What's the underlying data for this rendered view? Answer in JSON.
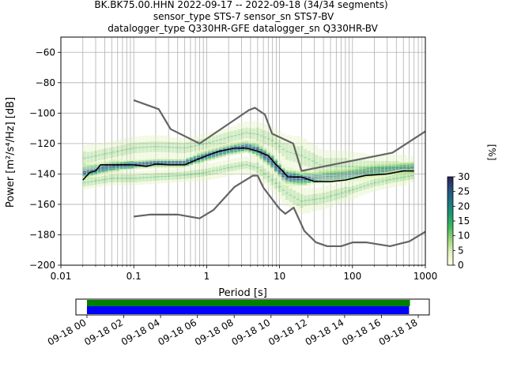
{
  "title_lines": [
    "BK.BK75.00.HHN   2022-09-17 -- 2022-09-18  (34/34 segments)",
    "sensor_type STS-7 sensor_sn STS7-BV",
    "datalogger_type Q330HR-GFE datalogger_sn Q330HR-BV"
  ],
  "chart_data": [
    {
      "type": "heatmap",
      "subtype": "probabilistic-power-spectral-density",
      "xlabel": "Period [s]",
      "ylabel": "Power [m²/s⁴/Hz] [dB]",
      "x_scale": "log",
      "xlim": [
        0.01,
        1000
      ],
      "ylim": [
        -200,
        -50
      ],
      "x_ticks": [
        {
          "value": 0.01,
          "label": "0.01"
        },
        {
          "value": 0.1,
          "label": "0.1"
        },
        {
          "value": 1,
          "label": "1"
        },
        {
          "value": 10,
          "label": "10"
        },
        {
          "value": 100,
          "label": "100"
        },
        {
          "value": 1000,
          "label": "1000"
        }
      ],
      "y_ticks": [
        -200,
        -180,
        -160,
        -140,
        -120,
        -100,
        -80,
        -60
      ],
      "grid": true,
      "colorbar": {
        "label": "[%]",
        "min": 0,
        "max": 30,
        "ticks": [
          0,
          5,
          10,
          15,
          20,
          25,
          30
        ],
        "colors": [
          "#ffffe5",
          "#e2f3bf",
          "#9fd57a",
          "#3ebc5e",
          "#1c9a6e",
          "#1d7585",
          "#28507e",
          "#2a2355"
        ]
      },
      "series": [
        {
          "role": "noise-model-high",
          "color": "#646464",
          "points": [
            [
              0.1,
              -91.5
            ],
            [
              0.22,
              -97.4
            ],
            [
              0.32,
              -110.5
            ],
            [
              0.8,
              -120
            ],
            [
              3.8,
              -98
            ],
            [
              4.6,
              -96.5
            ],
            [
              6.3,
              -101
            ],
            [
              7.9,
              -113.5
            ],
            [
              15.4,
              -120
            ],
            [
              20,
              -138
            ],
            [
              354.8,
              -126
            ],
            [
              1000,
              -112
            ]
          ]
        },
        {
          "role": "noise-model-low",
          "color": "#646464",
          "points": [
            [
              0.1,
              -168
            ],
            [
              0.17,
              -166.7
            ],
            [
              0.4,
              -166.7
            ],
            [
              0.8,
              -169.2
            ],
            [
              1.24,
              -163.7
            ],
            [
              2.4,
              -148.6
            ],
            [
              4.3,
              -141.1
            ],
            [
              5,
              -141.1
            ],
            [
              6,
              -149
            ],
            [
              10,
              -163
            ],
            [
              12,
              -166.2
            ],
            [
              15.6,
              -162.1
            ],
            [
              21.9,
              -177.5
            ],
            [
              31.6,
              -185
            ],
            [
              45,
              -187.5
            ],
            [
              70,
              -187.5
            ],
            [
              101,
              -185
            ],
            [
              154,
              -185
            ],
            [
              328,
              -187.5
            ],
            [
              600,
              -184.4
            ],
            [
              1000,
              -178
            ]
          ]
        },
        {
          "role": "mode",
          "color": "#000000",
          "points": [
            [
              0.02,
              -144
            ],
            [
              0.025,
              -139
            ],
            [
              0.03,
              -138
            ],
            [
              0.035,
              -134
            ],
            [
              0.05,
              -134
            ],
            [
              0.1,
              -134
            ],
            [
              0.15,
              -135
            ],
            [
              0.2,
              -133.5
            ],
            [
              0.3,
              -134
            ],
            [
              0.5,
              -134
            ],
            [
              0.7,
              -131
            ],
            [
              1,
              -128
            ],
            [
              1.5,
              -125
            ],
            [
              2.5,
              -123
            ],
            [
              3.5,
              -123
            ],
            [
              5,
              -125
            ],
            [
              7,
              -128
            ],
            [
              9,
              -134
            ],
            [
              11,
              -138
            ],
            [
              13,
              -142
            ],
            [
              20,
              -142
            ],
            [
              30,
              -145
            ],
            [
              50,
              -145
            ],
            [
              80,
              -144
            ],
            [
              150,
              -141
            ],
            [
              300,
              -140
            ],
            [
              500,
              -138
            ],
            [
              700,
              -138
            ]
          ]
        }
      ],
      "density_bands": [
        {
          "x": [
            0.02,
            0.05,
            0.1,
            0.2,
            0.5,
            1,
            2,
            3.5,
            5,
            8,
            12,
            20,
            40,
            80,
            200,
            400,
            700
          ],
          "y": [
            -139,
            -135,
            -134,
            -133,
            -133,
            -128,
            -124,
            -122,
            -124,
            -132,
            -142,
            -143,
            -142,
            -141,
            -138,
            -137,
            -136
          ],
          "spread": [
            5,
            4,
            3,
            3,
            3,
            4,
            4,
            4,
            5,
            6,
            6,
            5,
            4,
            4,
            4,
            4,
            4
          ],
          "opacity": 0.85
        },
        {
          "x": [
            0.02,
            0.05,
            0.1,
            0.2,
            0.5,
            1,
            2,
            3.5,
            5,
            8,
            12,
            20,
            40,
            80,
            200,
            400,
            700
          ],
          "y": [
            -130,
            -126,
            -123,
            -122,
            -123,
            -120,
            -116,
            -113,
            -114,
            -118,
            -125,
            -128,
            -135,
            -135,
            -136,
            -136,
            -136
          ],
          "spread": [
            8,
            7,
            7,
            7,
            6,
            6,
            6,
            7,
            8,
            9,
            10,
            12,
            10,
            10,
            8,
            8,
            7
          ],
          "opacity": 0.5
        },
        {
          "x": [
            0.02,
            0.05,
            0.1,
            0.2,
            0.5,
            1,
            2,
            3.5,
            5,
            8,
            12,
            20,
            40,
            80,
            200,
            400,
            700
          ],
          "y": [
            -146,
            -143,
            -143,
            -142,
            -141,
            -139,
            -136,
            -134,
            -136,
            -144,
            -152,
            -158,
            -156,
            -152,
            -146,
            -143,
            -141
          ],
          "spread": [
            4,
            4,
            4,
            4,
            4,
            5,
            5,
            5,
            6,
            7,
            8,
            8,
            7,
            6,
            5,
            5,
            4
          ],
          "opacity": 0.55
        }
      ]
    },
    {
      "type": "timeline",
      "x_ticks": [
        "09-18 00",
        "09-18 02",
        "09-18 04",
        "09-18 06",
        "09-18 08",
        "09-18 10",
        "09-18 12",
        "09-18 14",
        "09-18 16",
        "09-18 18"
      ],
      "tick_hours": [
        0,
        2,
        4,
        6,
        8,
        10,
        12,
        14,
        16,
        18
      ],
      "xlim_hours": [
        -0.6,
        18.6
      ],
      "bars": [
        {
          "color": "#008000",
          "start_hour": 0.0,
          "end_hour": 17.55
        },
        {
          "color": "#0000ff",
          "start_hour": 0.0,
          "end_hour": 17.5
        }
      ]
    }
  ]
}
